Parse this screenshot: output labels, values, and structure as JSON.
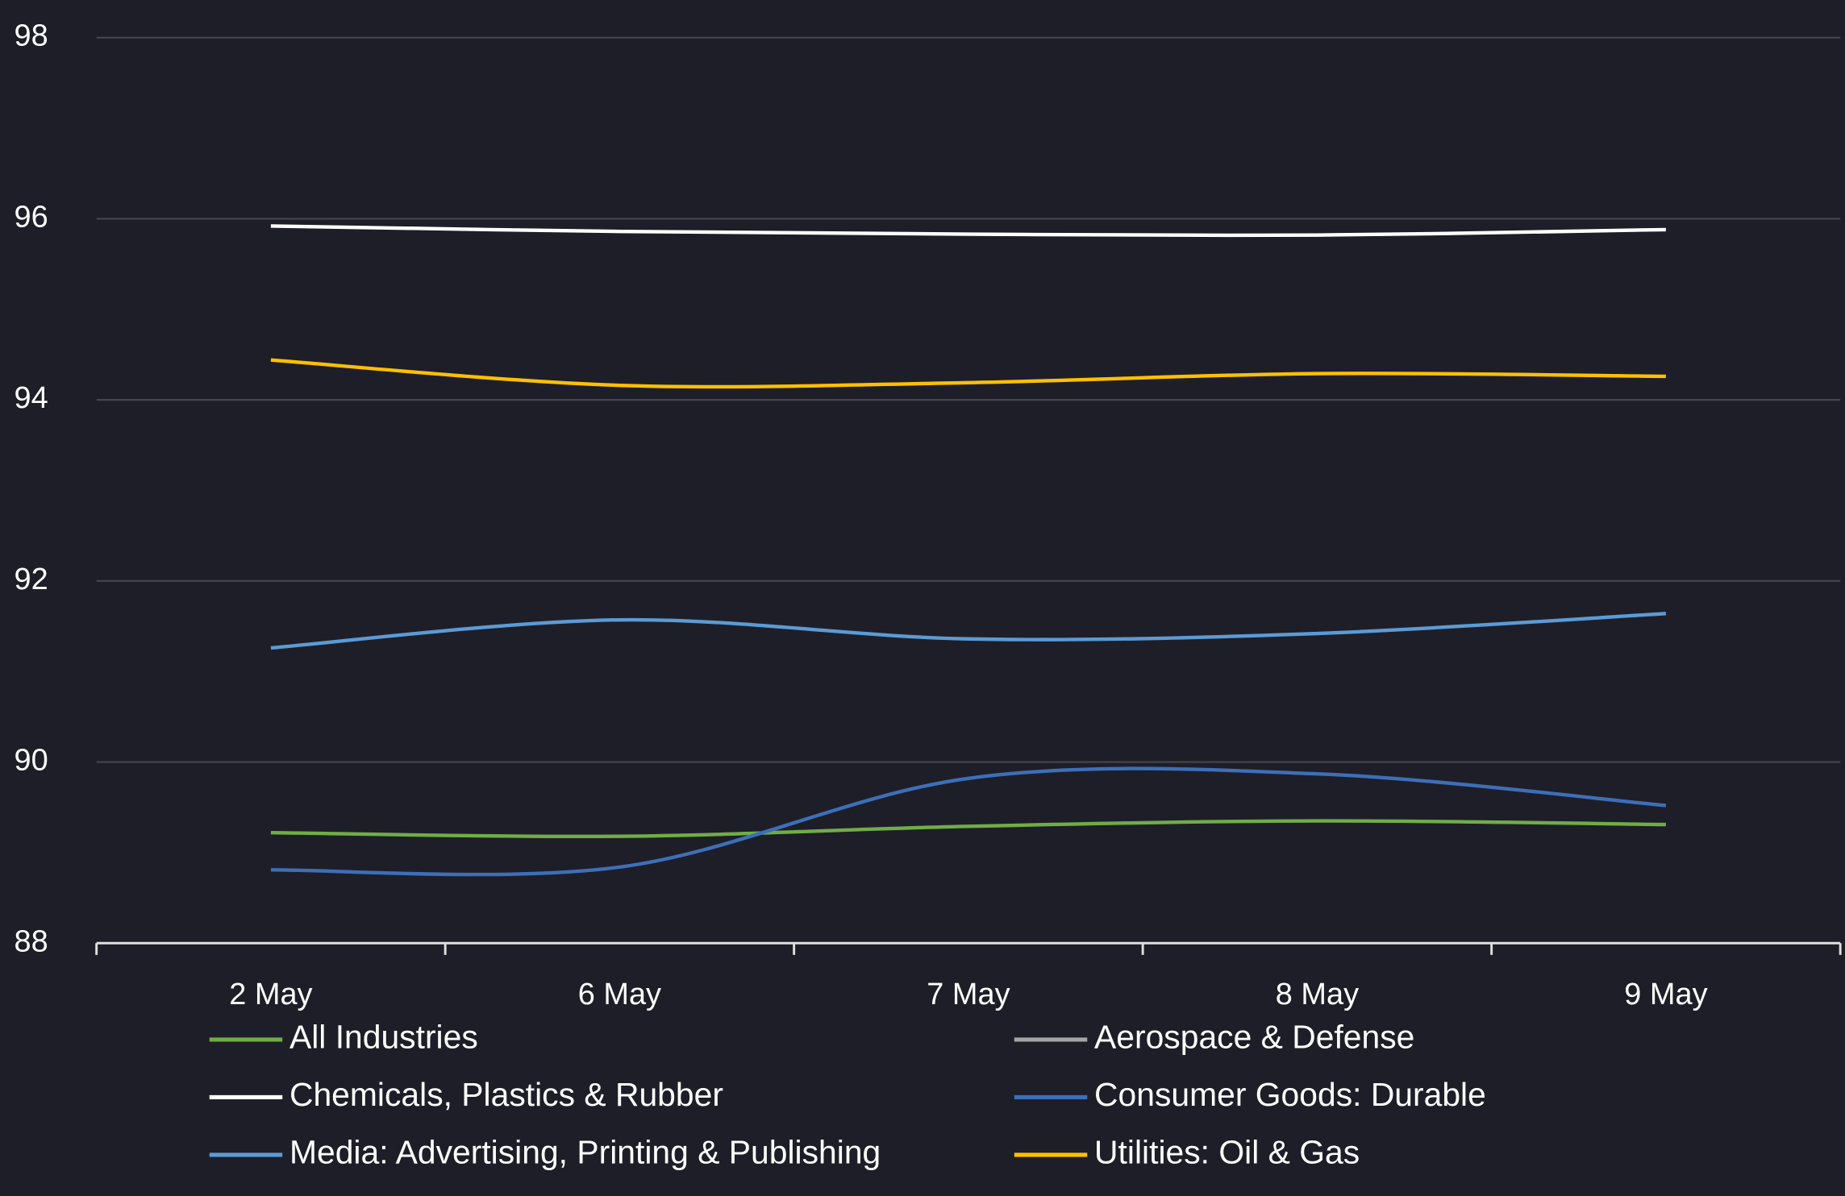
{
  "chart_data": {
    "type": "line",
    "categories": [
      "2 May",
      "6 May",
      "7 May",
      "8 May",
      "9 May"
    ],
    "ylim": [
      88,
      98
    ],
    "yticks": [
      88,
      90,
      92,
      94,
      96,
      98
    ],
    "grid": true,
    "smooth": true,
    "legend": "bottom",
    "series": [
      {
        "name": "All Industries",
        "color": "#70ad47",
        "values": [
          89.22,
          89.18,
          89.29,
          89.35,
          89.31
        ]
      },
      {
        "name": "Aerospace & Defense",
        "color": "#a5a5a5",
        "values": [
          null,
          null,
          null,
          null,
          null
        ]
      },
      {
        "name": "Chemicals, Plastics & Rubber",
        "color": "#ffffff",
        "values": [
          95.92,
          95.86,
          95.83,
          95.82,
          95.88
        ]
      },
      {
        "name": "Consumer Goods: Durable",
        "color": "#3d6fb8",
        "values": [
          88.81,
          88.84,
          89.82,
          89.87,
          89.52
        ]
      },
      {
        "name": "Media: Advertising, Printing & Publishing",
        "color": "#5b9bd5",
        "values": [
          91.26,
          91.57,
          91.36,
          91.42,
          91.64
        ]
      },
      {
        "name": "Utilities: Oil & Gas",
        "color": "#ffc000",
        "values": [
          94.44,
          94.16,
          94.19,
          94.29,
          94.26
        ]
      }
    ]
  }
}
